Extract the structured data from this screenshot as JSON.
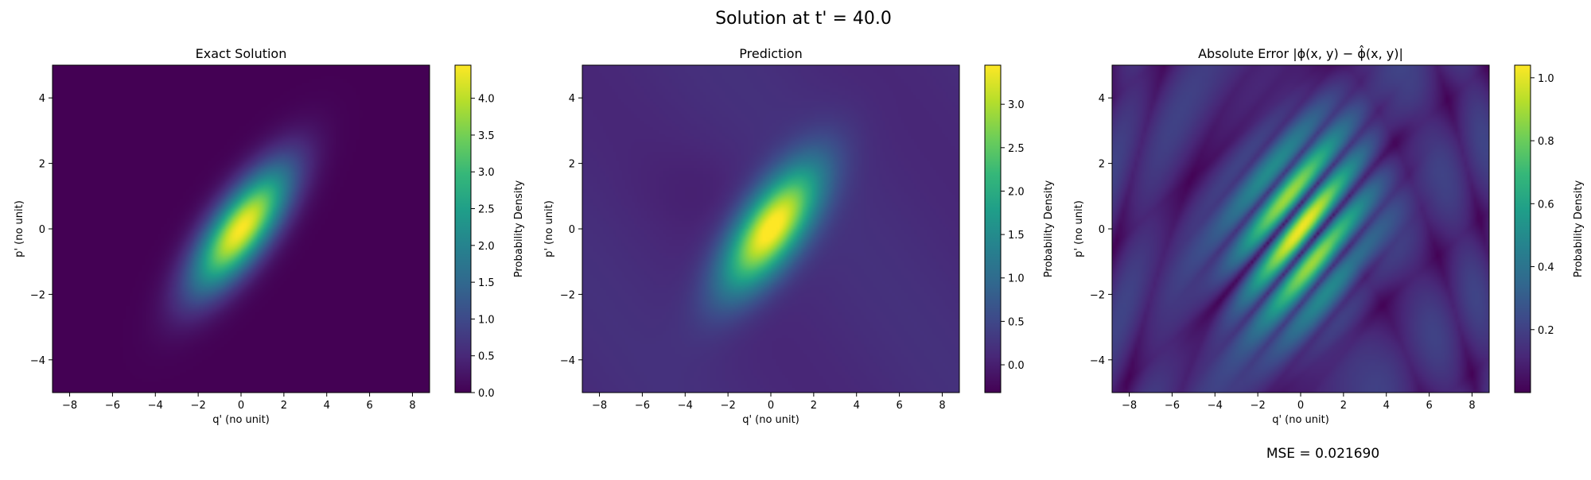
{
  "figure": {
    "suptitle": "Solution at t' = 40.0",
    "mse_label": "MSE = 0.021690"
  },
  "colors": {
    "viridis": [
      "#440154",
      "#482878",
      "#3e4989",
      "#31688e",
      "#26828e",
      "#1f9e89",
      "#35b779",
      "#6ece58",
      "#b5de2b",
      "#fde725"
    ]
  },
  "chart_data": [
    {
      "type": "heatmap",
      "title": "Exact Solution",
      "xlabel": "q' (no unit)",
      "ylabel": "p' (no unit)",
      "xlim": [
        -8.8,
        8.8
      ],
      "ylim": [
        -5.0,
        5.0
      ],
      "xticks": [
        -8,
        -6,
        -4,
        -2,
        0,
        2,
        4,
        6,
        8
      ],
      "yticks": [
        -4,
        -2,
        0,
        2,
        4
      ],
      "colorbar": {
        "label": "Probability Density",
        "range": [
          0,
          4.45
        ],
        "ticks": [
          0.0,
          0.5,
          1.0,
          1.5,
          2.0,
          2.5,
          3.0,
          3.5,
          4.0
        ]
      },
      "field": {
        "peak": 4.45,
        "peak_at": [
          0,
          0
        ],
        "major_axis_angle_deg": 38,
        "sigma_major": 1.9,
        "sigma_minor": 0.72,
        "background": 0.0
      },
      "grid": false
    },
    {
      "type": "heatmap",
      "title": "Prediction",
      "xlabel": "q' (no unit)",
      "ylabel": "p' (no unit)",
      "xlim": [
        -8.8,
        8.8
      ],
      "ylim": [
        -5.0,
        5.0
      ],
      "xticks": [
        -8,
        -6,
        -4,
        -2,
        0,
        2,
        4,
        6,
        8
      ],
      "yticks": [
        -4,
        -2,
        0,
        2,
        4
      ],
      "colorbar": {
        "label": "Probability Density",
        "range": [
          -0.32,
          3.45
        ],
        "ticks": [
          0.0,
          0.5,
          1.0,
          1.5,
          2.0,
          2.5,
          3.0
        ]
      },
      "field": {
        "peak": 3.45,
        "peak_at": [
          0,
          0
        ],
        "major_axis_angle_deg": 38,
        "sigma_major": 1.9,
        "sigma_minor": 0.8,
        "background": 0.15
      },
      "grid": false
    },
    {
      "type": "heatmap",
      "title": "Absolute Error |ϕ(x, y) − ϕ̂(x, y)|",
      "xlabel": "q' (no unit)",
      "ylabel": "p' (no unit)",
      "xlim": [
        -8.8,
        8.8
      ],
      "ylim": [
        -5.0,
        5.0
      ],
      "xticks": [
        -8,
        -6,
        -4,
        -2,
        0,
        2,
        4,
        6,
        8
      ],
      "yticks": [
        -4,
        -2,
        0,
        2,
        4
      ],
      "colorbar": {
        "label": "Probability Density",
        "range": [
          0.0,
          1.04
        ],
        "ticks": [
          0.2,
          0.4,
          0.6,
          0.8,
          1.0
        ]
      },
      "field": {
        "peak": 1.02,
        "peak_at": [
          0,
          0
        ],
        "major_axis_angle_deg": 38,
        "background": 0.1
      },
      "grid": false
    }
  ]
}
